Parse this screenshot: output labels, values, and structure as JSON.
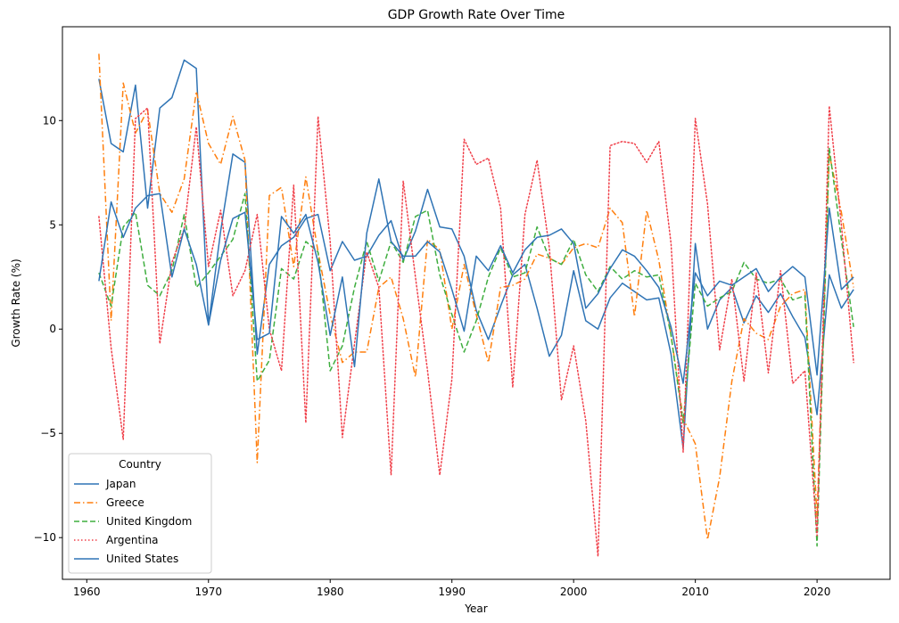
{
  "chart_data": {
    "type": "line",
    "title": "GDP Growth Rate Over Time",
    "xlabel": "Year",
    "ylabel": "Growth Rate (%)",
    "xlim": [
      1958,
      2026
    ],
    "ylim": [
      -12,
      14.5
    ],
    "x_ticks": [
      1960,
      1970,
      1980,
      1990,
      2000,
      2010,
      2020
    ],
    "y_ticks": [
      -10,
      -5,
      0,
      5,
      10
    ],
    "x_tick_labels": [
      "1960",
      "1970",
      "1980",
      "1990",
      "2000",
      "2010",
      "2020"
    ],
    "y_tick_labels": [
      "−10",
      "−5",
      "0",
      "5",
      "10"
    ],
    "grid": false,
    "legend": {
      "title": "Country",
      "placement": "lower-left"
    },
    "x": [
      1961,
      1962,
      1963,
      1964,
      1965,
      1966,
      1967,
      1968,
      1969,
      1970,
      1971,
      1972,
      1973,
      1974,
      1975,
      1976,
      1977,
      1978,
      1979,
      1980,
      1981,
      1982,
      1983,
      1984,
      1985,
      1986,
      1987,
      1988,
      1989,
      1990,
      1991,
      1992,
      1993,
      1994,
      1995,
      1996,
      1997,
      1998,
      1999,
      2000,
      2001,
      2002,
      2003,
      2004,
      2005,
      2006,
      2007,
      2008,
      2009,
      2010,
      2011,
      2012,
      2013,
      2014,
      2015,
      2016,
      2017,
      2018,
      2019,
      2020,
      2021,
      2022,
      2023
    ],
    "series": [
      {
        "name": "Japan",
        "color": "#2f74b5",
        "dash": "solid",
        "values": [
          12.0,
          8.9,
          8.5,
          11.7,
          5.8,
          10.6,
          11.1,
          12.9,
          12.5,
          0.2,
          4.7,
          8.4,
          8.0,
          -1.2,
          3.1,
          4.0,
          4.4,
          5.3,
          5.5,
          2.8,
          4.2,
          3.3,
          3.5,
          4.5,
          5.2,
          3.3,
          4.7,
          6.7,
          4.9,
          4.8,
          3.5,
          0.9,
          -0.5,
          1.1,
          2.6,
          3.1,
          1.0,
          -1.3,
          -0.3,
          2.8,
          0.4,
          0.0,
          1.5,
          2.2,
          1.8,
          1.4,
          1.5,
          -1.2,
          -5.7,
          4.1,
          0.0,
          1.4,
          2.0,
          0.3,
          1.6,
          0.8,
          1.7,
          0.6,
          -0.4,
          -4.1,
          2.6,
          1.0,
          1.9
        ]
      },
      {
        "name": "Greece",
        "color": "#ff7f0e",
        "dash": "dashdot",
        "values": [
          13.2,
          0.4,
          11.8,
          9.4,
          10.5,
          6.5,
          5.6,
          7.2,
          11.4,
          8.9,
          7.9,
          10.2,
          8.1,
          -6.4,
          6.4,
          6.8,
          3.0,
          7.3,
          3.7,
          0.7,
          -1.6,
          -1.1,
          -1.1,
          2.0,
          2.5,
          0.5,
          -2.3,
          4.3,
          3.8,
          0.0,
          3.1,
          0.7,
          -1.6,
          2.0,
          2.1,
          2.4,
          3.6,
          3.4,
          3.1,
          3.9,
          4.1,
          3.9,
          5.8,
          5.1,
          0.6,
          5.7,
          3.3,
          -0.3,
          -4.3,
          -5.5,
          -10.1,
          -7.1,
          -2.5,
          0.5,
          -0.2,
          -0.5,
          1.1,
          1.7,
          1.9,
          -9.0,
          8.4,
          5.6,
          2.0
        ]
      },
      {
        "name": "United Kingdom",
        "color": "#3fae3f",
        "dash": "dashed",
        "values": [
          2.7,
          1.1,
          4.9,
          5.6,
          2.1,
          1.6,
          2.8,
          5.5,
          2.0,
          2.7,
          3.5,
          4.3,
          6.5,
          -2.5,
          -1.5,
          2.9,
          2.4,
          4.2,
          3.7,
          -2.0,
          -0.8,
          2.0,
          4.2,
          2.3,
          4.2,
          3.2,
          5.4,
          5.7,
          2.6,
          0.7,
          -1.1,
          0.4,
          2.5,
          3.9,
          2.5,
          2.7,
          4.9,
          3.4,
          3.1,
          4.3,
          2.6,
          1.8,
          3.0,
          2.4,
          2.8,
          2.5,
          2.6,
          -0.3,
          -4.5,
          2.2,
          1.1,
          1.5,
          1.8,
          3.2,
          2.4,
          2.2,
          2.4,
          1.4,
          1.6,
          -10.4,
          8.7,
          4.3,
          0.1
        ]
      },
      {
        "name": "Argentina",
        "color": "#f0404a",
        "dash": "dotted",
        "values": [
          5.4,
          -0.9,
          -5.3,
          10.1,
          10.6,
          -0.7,
          3.2,
          4.8,
          9.7,
          3.0,
          5.7,
          1.6,
          2.8,
          5.5,
          0.0,
          -2.0,
          6.9,
          -4.5,
          10.2,
          4.2,
          -5.2,
          -0.7,
          3.7,
          2.0,
          -7.0,
          7.1,
          2.5,
          -2.0,
          -7.0,
          -2.4,
          9.1,
          7.9,
          8.2,
          5.8,
          -2.8,
          5.5,
          8.1,
          3.9,
          -3.4,
          -0.8,
          -4.4,
          -10.9,
          8.8,
          9.0,
          8.9,
          8.0,
          9.0,
          4.1,
          -5.9,
          10.1,
          6.0,
          -1.0,
          2.4,
          -2.5,
          2.7,
          -2.1,
          2.8,
          -2.6,
          -2.0,
          -9.9,
          10.7,
          5.0,
          -1.6
        ]
      },
      {
        "name": "United States",
        "color": "#2f74b5",
        "dash": "solid",
        "values": [
          2.3,
          6.1,
          4.4,
          5.8,
          6.4,
          6.5,
          2.5,
          4.8,
          3.1,
          0.2,
          3.3,
          5.3,
          5.6,
          -0.5,
          -0.2,
          5.4,
          4.6,
          5.5,
          3.2,
          -0.3,
          2.5,
          -1.8,
          4.6,
          7.2,
          4.2,
          3.5,
          3.5,
          4.2,
          3.7,
          1.9,
          -0.1,
          3.5,
          2.8,
          4.0,
          2.7,
          3.8,
          4.4,
          4.5,
          4.8,
          4.1,
          1.0,
          1.7,
          2.9,
          3.8,
          3.5,
          2.8,
          2.0,
          0.1,
          -2.6,
          2.7,
          1.6,
          2.3,
          2.1,
          2.5,
          2.9,
          1.8,
          2.5,
          3.0,
          2.5,
          -2.2,
          5.8,
          1.9,
          2.5
        ]
      }
    ]
  }
}
